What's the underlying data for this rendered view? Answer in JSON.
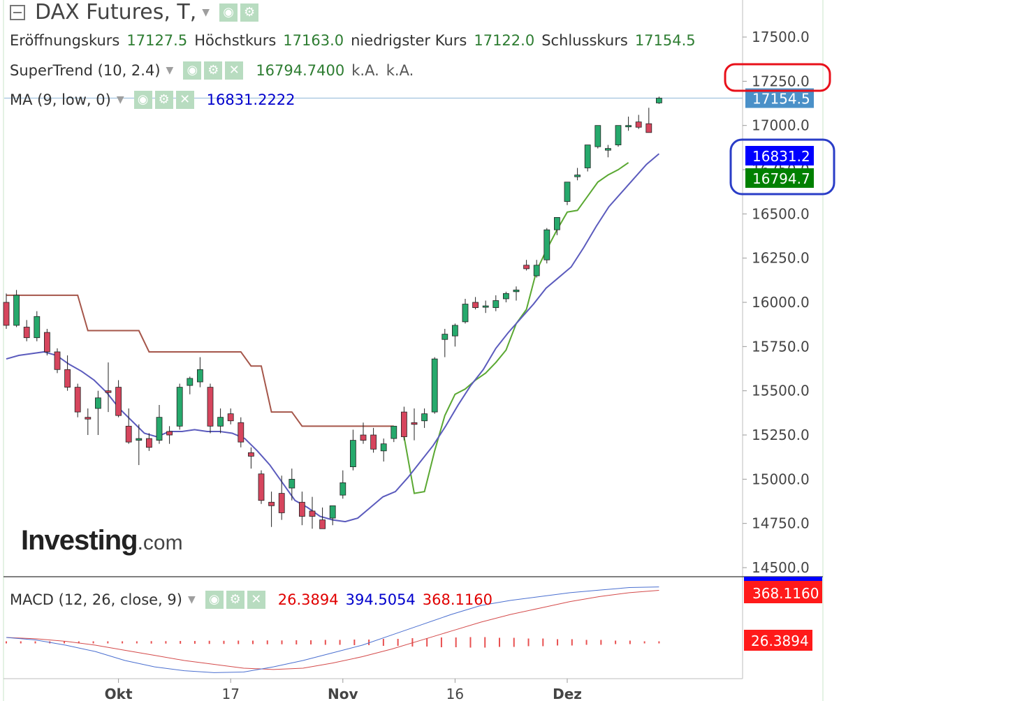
{
  "header": {
    "title": "DAX Futures, T,",
    "ohlc": [
      {
        "label": "Eröffnungskurs",
        "value": "17127.5"
      },
      {
        "label": "Höchstkurs",
        "value": "17163.0"
      },
      {
        "label": "niedrigster Kurs",
        "value": "17122.0"
      },
      {
        "label": "Schlusskurs",
        "value": "17154.5"
      }
    ]
  },
  "indicators": {
    "supertrend": {
      "label": "SuperTrend (10, 2.4)",
      "value": "16794.7400",
      "extra1": "k.A.",
      "extra2": "k.A."
    },
    "ma": {
      "label": "MA (9, low, 0)",
      "value": "16831.2222"
    },
    "macd": {
      "label": "MACD (12, 26, close, 9)",
      "hist": "26.3894",
      "macd": "394.5054",
      "signal": "368.1160"
    }
  },
  "brand": {
    "name": "Investing",
    "suffix": ".com"
  },
  "icons": [
    "collapse-icon",
    "eye-icon",
    "gear-icon",
    "close-icon",
    "dropdown-caret-icon"
  ],
  "colors": {
    "up": "#26a96c",
    "down": "#d6455d",
    "supertrend_down": "#a5564a",
    "supertrend_up": "#5aa832",
    "ma": "#5b5bbd",
    "price_tag": "#4a90c8",
    "ma_tag": "#0000ff",
    "st_tag": "#008000",
    "macd_line": "#4a6fd0",
    "signal_line": "#d44a4a",
    "hist": "#e85050",
    "highlight_red": "#e8101a",
    "highlight_blue": "#2a3dc7"
  },
  "chart_data": [
    {
      "type": "candlestick",
      "y_ticks": [
        "17500.0",
        "17250.0",
        "17000.0",
        "16750.0",
        "16500.0",
        "16250.0",
        "16000.0",
        "15750.0",
        "15500.0",
        "15250.0",
        "15000.0",
        "14750.0",
        "14500.0"
      ],
      "ylim": [
        14500,
        17500
      ],
      "x_ticks": [
        {
          "label": "Okt",
          "index": 11
        },
        {
          "label": "17",
          "index": 22
        },
        {
          "label": "Nov",
          "index": 33
        },
        {
          "label": "16",
          "index": 44
        },
        {
          "label": "Dez",
          "index": 55
        }
      ],
      "last_price": "17154.5",
      "ma_tag": "16831.2",
      "st_tag": "16794.7",
      "candles": [
        [
          16000,
          16050,
          15850,
          15870
        ],
        [
          15870,
          16070,
          15860,
          16040
        ],
        [
          15860,
          15900,
          15780,
          15800
        ],
        [
          15800,
          15950,
          15780,
          15920
        ],
        [
          15830,
          15850,
          15700,
          15720
        ],
        [
          15720,
          15740,
          15600,
          15620
        ],
        [
          15620,
          15700,
          15500,
          15520
        ],
        [
          15520,
          15540,
          15350,
          15380
        ],
        [
          15350,
          15400,
          15250,
          15340
        ],
        [
          15400,
          15500,
          15250,
          15460
        ],
        [
          15500,
          15660,
          15380,
          15490
        ],
        [
          15520,
          15560,
          15350,
          15360
        ],
        [
          15300,
          15400,
          15200,
          15210
        ],
        [
          15220,
          15310,
          15080,
          15230
        ],
        [
          15230,
          15260,
          15160,
          15180
        ],
        [
          15220,
          15420,
          15200,
          15350
        ],
        [
          15270,
          15300,
          15200,
          15250
        ],
        [
          15300,
          15540,
          15280,
          15520
        ],
        [
          15530,
          15580,
          15480,
          15570
        ],
        [
          15550,
          15690,
          15520,
          15620
        ],
        [
          15520,
          15540,
          15260,
          15300
        ],
        [
          15300,
          15400,
          15260,
          15350
        ],
        [
          15370,
          15400,
          15310,
          15330
        ],
        [
          15320,
          15350,
          15180,
          15210
        ],
        [
          15150,
          15180,
          15060,
          15130
        ],
        [
          15030,
          15050,
          14860,
          14880
        ],
        [
          14870,
          14930,
          14730,
          14850
        ],
        [
          14920,
          15020,
          14770,
          14810
        ],
        [
          14950,
          15060,
          14880,
          15000
        ],
        [
          14870,
          14930,
          14740,
          14790
        ],
        [
          14820,
          14900,
          14720,
          14790
        ],
        [
          14770,
          14840,
          14730,
          14720
        ],
        [
          14780,
          14850,
          14740,
          14850
        ],
        [
          14910,
          15050,
          14890,
          14980
        ],
        [
          15070,
          15280,
          15050,
          15220
        ],
        [
          15250,
          15320,
          15200,
          15220
        ],
        [
          15250,
          15290,
          15150,
          15170
        ],
        [
          15160,
          15230,
          15100,
          15200
        ],
        [
          15230,
          15300,
          15210,
          15300
        ],
        [
          15380,
          15410,
          15220,
          15240
        ],
        [
          15320,
          15400,
          15220,
          15310
        ],
        [
          15330,
          15400,
          15290,
          15370
        ],
        [
          15380,
          15690,
          15370,
          15680
        ],
        [
          15790,
          15850,
          15690,
          15820
        ],
        [
          15810,
          15880,
          15750,
          15870
        ],
        [
          15890,
          16020,
          15880,
          15990
        ],
        [
          16000,
          16030,
          15960,
          15970
        ],
        [
          15980,
          16010,
          15940,
          15980
        ],
        [
          15970,
          16040,
          15950,
          16010
        ],
        [
          16020,
          16060,
          16000,
          16050
        ],
        [
          16060,
          16090,
          16010,
          16070
        ],
        [
          16210,
          16240,
          16180,
          16190
        ],
        [
          16150,
          16240,
          16140,
          16210
        ],
        [
          16240,
          16420,
          16220,
          16410
        ],
        [
          16410,
          16480,
          16380,
          16480
        ],
        [
          16570,
          16650,
          16550,
          16680
        ],
        [
          16710,
          16760,
          16690,
          16720
        ],
        [
          16760,
          16880,
          16740,
          16890
        ],
        [
          16880,
          17000,
          16870,
          17000
        ],
        [
          16860,
          16890,
          16820,
          16870
        ],
        [
          16890,
          17000,
          16880,
          17000
        ],
        [
          17000,
          17050,
          16970,
          17000
        ],
        [
          17020,
          17060,
          16980,
          16990
        ],
        [
          17010,
          17100,
          16960,
          16960
        ],
        [
          17127.5,
          17163,
          17122,
          17154.5
        ]
      ],
      "supertrend": [
        16040,
        16040,
        16040,
        16040,
        16040,
        16040,
        16040,
        16040,
        15840,
        15840,
        15840,
        15840,
        15840,
        15840,
        15720,
        15720,
        15720,
        15720,
        15720,
        15720,
        15720,
        15720,
        15720,
        15720,
        15640,
        15640,
        15380,
        15380,
        15380,
        15300,
        15300,
        15300,
        15300,
        15300,
        15300,
        15300,
        15300,
        15300,
        15300,
        15240,
        14920,
        14930,
        15160,
        15360,
        15480,
        15510,
        15560,
        15600,
        15660,
        15730,
        15880,
        15960,
        16180,
        16300,
        16410,
        16510,
        16520,
        16600,
        16680,
        16720,
        16750,
        16790
      ],
      "ma": [
        15680,
        15700,
        15710,
        15720,
        15700,
        15650,
        15610,
        15560,
        15490,
        15400,
        15330,
        15260,
        15240,
        15270,
        15270,
        15280,
        15270,
        15270,
        15260,
        15230,
        15160,
        15080,
        14980,
        14880,
        14840,
        14790,
        14770,
        14760,
        14780,
        14840,
        14900,
        14930,
        15010,
        15100,
        15190,
        15300,
        15420,
        15530,
        15620,
        15740,
        15830,
        15910,
        15990,
        16080,
        16140,
        16200,
        16310,
        16430,
        16540,
        16620,
        16700,
        16780,
        16840
      ]
    },
    {
      "type": "macd",
      "macd_line": [
        0,
        -20,
        -60,
        -110,
        -180,
        -230,
        -260,
        -275,
        -270,
        -230,
        -180,
        -120,
        -60,
        20,
        100,
        180,
        250,
        290,
        320,
        350,
        370,
        390,
        395
      ],
      "signal_line": [
        0,
        -10,
        -30,
        -60,
        -100,
        -140,
        -180,
        -210,
        -240,
        -250,
        -240,
        -200,
        -150,
        -90,
        -20,
        50,
        120,
        180,
        230,
        280,
        320,
        350,
        368
      ],
      "histogram": [
        10,
        15,
        20,
        25,
        30,
        35,
        40,
        45,
        50,
        55,
        60,
        70,
        80,
        100,
        120,
        140,
        150,
        130,
        110,
        90,
        70,
        50,
        26
      ]
    }
  ]
}
